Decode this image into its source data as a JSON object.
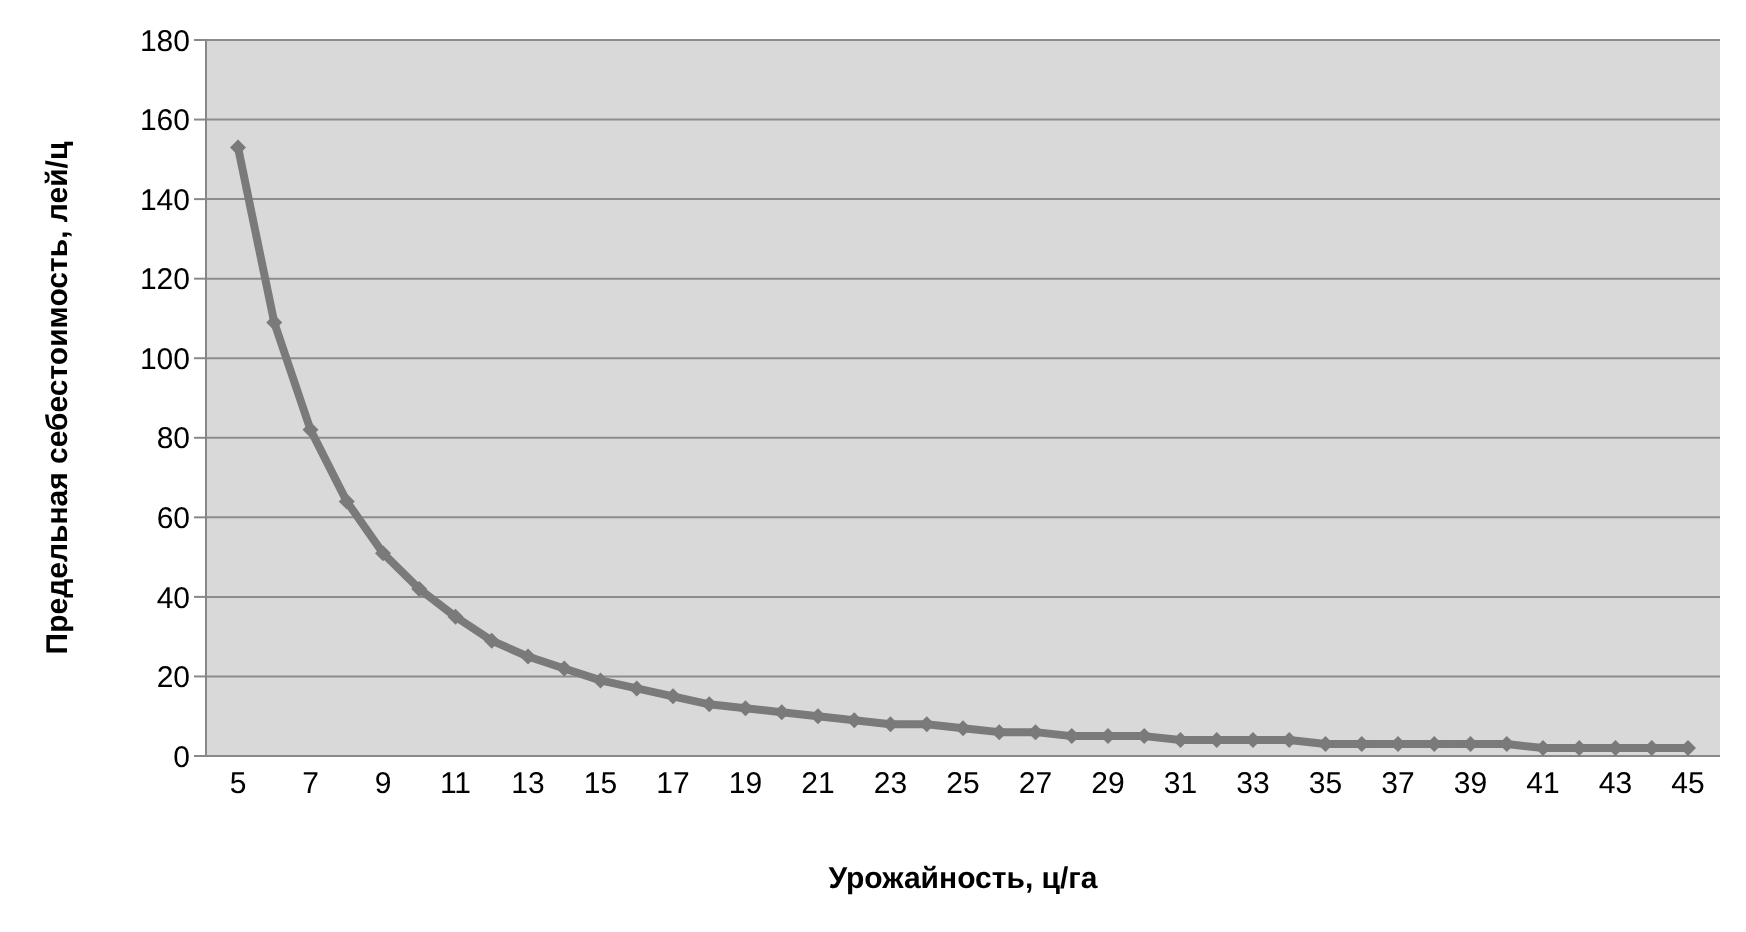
{
  "chart_data": {
    "type": "line",
    "xlabel": "Урожайность, ц/га",
    "ylabel": "Предельная себестоимость, лей/ц",
    "categories": [
      "5",
      null,
      "7",
      null,
      "9",
      null,
      "11",
      null,
      "13",
      null,
      "15",
      null,
      "17",
      null,
      "19",
      null,
      "21",
      null,
      "23",
      null,
      "25",
      null,
      "27",
      null,
      "29",
      null,
      "31",
      null,
      "33",
      null,
      "35",
      null,
      "37",
      null,
      "39",
      null,
      "41",
      null,
      "43",
      null,
      "45"
    ],
    "series": [
      {
        "color": "#7a7a7a",
        "values": [
          153,
          109,
          82,
          64,
          51,
          42,
          35,
          29,
          25,
          22,
          19,
          17,
          15,
          13,
          12,
          11,
          10,
          9,
          8,
          8,
          7,
          6,
          6,
          5,
          5,
          5,
          4,
          4,
          4,
          4,
          3,
          3,
          3,
          3,
          3,
          3,
          2,
          2,
          2,
          2,
          2
        ]
      }
    ],
    "ylim": [
      0,
      180
    ],
    "yticks": [
      0,
      20,
      40,
      60,
      80,
      100,
      120,
      140,
      160,
      180
    ],
    "grid": "y",
    "legend": false,
    "marker": "diamond",
    "line_style": "solid"
  }
}
